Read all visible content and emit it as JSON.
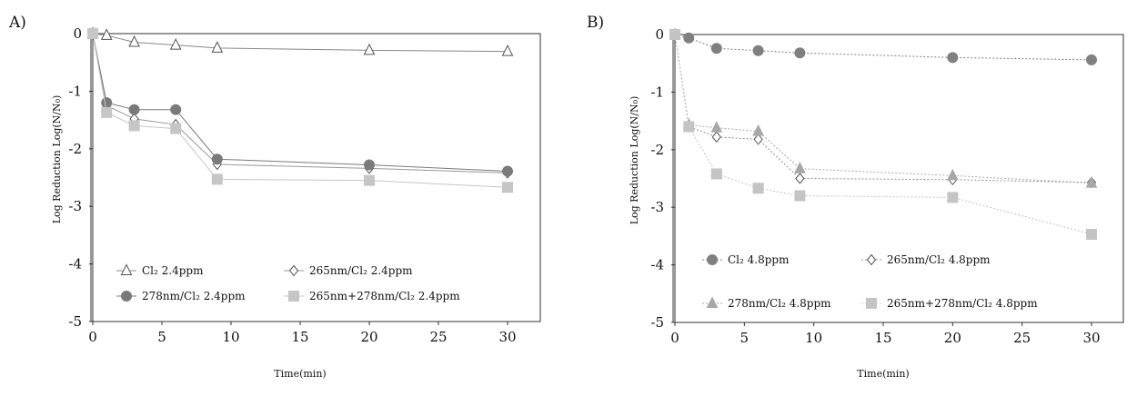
{
  "chart_data": [
    {
      "type": "line",
      "panel_label": "A)",
      "xlabel": "Time(min)",
      "ylabel": "Log Reduction Log(N/N₀)",
      "xlim": [
        0,
        30
      ],
      "ylim": [
        -5,
        0
      ],
      "xticks": [
        "0",
        "5",
        "10",
        "15",
        "20",
        "25",
        "30"
      ],
      "yticks": [
        "0",
        "-1",
        "-2",
        "-3",
        "-4",
        "-5"
      ],
      "grid": false,
      "legend_position": "bottom-inside",
      "series": [
        {
          "name": "Cl₂ 2.4ppm",
          "marker": "triangle-open",
          "color": "#888888",
          "x": [
            0,
            1,
            3,
            6,
            9,
            20,
            30
          ],
          "y": [
            0,
            -0.03,
            -0.15,
            -0.2,
            -0.25,
            -0.29,
            -0.31
          ]
        },
        {
          "name": "265nm/Cl₂ 2.4ppm",
          "marker": "diamond-open",
          "color": "#999999",
          "x": [
            0,
            1,
            3,
            6,
            9,
            20,
            30
          ],
          "y": [
            0,
            -1.25,
            -1.48,
            -1.58,
            -2.27,
            -2.34,
            -2.42
          ]
        },
        {
          "name": "278nm/Cl₂ 2.4ppm",
          "marker": "circle",
          "color": "#7a7a7a",
          "x": [
            0,
            1,
            3,
            6,
            9,
            20,
            30
          ],
          "y": [
            0,
            -1.2,
            -1.32,
            -1.32,
            -2.18,
            -2.28,
            -2.39
          ]
        },
        {
          "name": "265nm+278nm/Cl₂ 2.4ppm",
          "marker": "square",
          "color": "#c6c6c6",
          "x": [
            0,
            1,
            3,
            6,
            9,
            20,
            30
          ],
          "y": [
            0,
            -1.37,
            -1.6,
            -1.65,
            -2.53,
            -2.55,
            -2.67
          ]
        }
      ]
    },
    {
      "type": "line",
      "panel_label": "B)",
      "xlabel": "Time(min)",
      "ylabel": "Log Reduction Log(N/N₀)",
      "xlim": [
        0,
        30
      ],
      "ylim": [
        -5,
        0
      ],
      "xticks": [
        "0",
        "5",
        "10",
        "15",
        "20",
        "25",
        "30"
      ],
      "yticks": [
        "0",
        "-1",
        "-2",
        "-3",
        "-4",
        "-5"
      ],
      "grid": false,
      "legend_position": "bottom-inside",
      "series": [
        {
          "name": "Cl₂ 4.8ppm",
          "marker": "circle",
          "color": "#808080",
          "x": [
            0,
            1,
            3,
            6,
            9,
            20,
            30
          ],
          "y": [
            0,
            -0.06,
            -0.24,
            -0.28,
            -0.32,
            -0.4,
            -0.44
          ]
        },
        {
          "name": "265nm/Cl₂ 4.8ppm",
          "marker": "diamond-open",
          "color": "#909090",
          "x": [
            0,
            1,
            3,
            6,
            9,
            20,
            30
          ],
          "y": [
            0,
            -1.6,
            -1.78,
            -1.82,
            -2.5,
            -2.52,
            -2.57
          ]
        },
        {
          "name": "278nm/Cl₂ 4.8ppm",
          "marker": "triangle",
          "color": "#a8a8a8",
          "x": [
            0,
            1,
            3,
            6,
            9,
            20,
            30
          ],
          "y": [
            0,
            -1.57,
            -1.62,
            -1.68,
            -2.33,
            -2.45,
            -2.58
          ]
        },
        {
          "name": "265nm+278nm/Cl₂ 4.8ppm",
          "marker": "square",
          "color": "#c4c4c4",
          "x": [
            0,
            1,
            3,
            6,
            9,
            20,
            30
          ],
          "y": [
            0,
            -1.6,
            -2.42,
            -2.67,
            -2.8,
            -2.83,
            -3.47
          ]
        }
      ]
    }
  ]
}
